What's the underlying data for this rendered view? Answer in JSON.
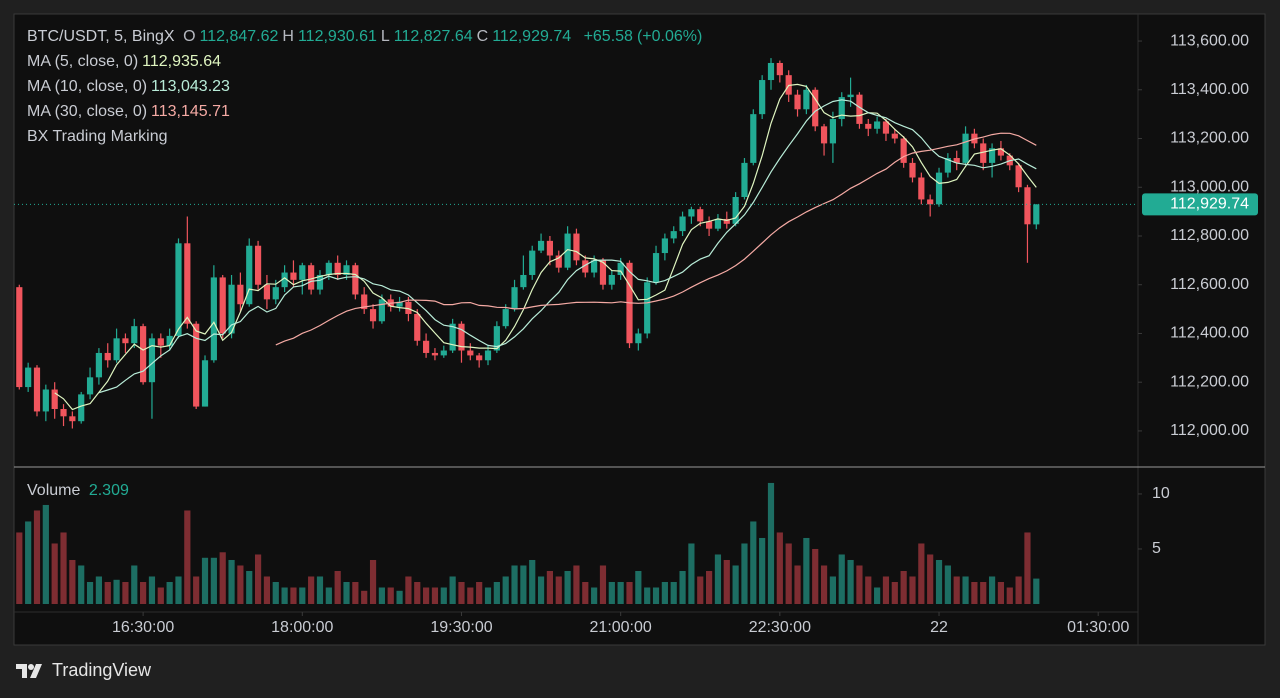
{
  "chart_data": [
    {
      "type": "candlestick",
      "title": "BTC/USDT, 5, BingX",
      "legend": {
        "labels": [
          "O",
          "H",
          "L",
          "C"
        ],
        "value_labels": [
          "112,847.62",
          "112,930.61",
          "112,827.64",
          "112,929.74"
        ],
        "change_label": "+65.58",
        "change_pct_label": "(+0.06%)"
      },
      "indicator": "BX Trading Marking",
      "last_price_label": "112,929.74",
      "up_color": "#22ab94",
      "down_color": "#f0555d",
      "open": [
        112590,
        112180,
        112260,
        112080,
        112170,
        112090,
        112060,
        112040,
        112150,
        112220,
        112320,
        112290,
        112380,
        112360,
        112430,
        112200,
        112380,
        112350,
        112390,
        112770,
        112440,
        112100,
        112290,
        112630,
        112400,
        112600,
        112520,
        112760,
        112600,
        112540,
        112590,
        112650,
        112620,
        112680,
        112580,
        112640,
        112690,
        112640,
        112680,
        112560,
        112500,
        112450,
        112540,
        112510,
        112530,
        112480,
        112370,
        112320,
        112310,
        112330,
        112440,
        112330,
        112310,
        112290,
        112330,
        112430,
        112500,
        112590,
        112640,
        112740,
        112780,
        112720,
        112670,
        112810,
        112700,
        112650,
        112700,
        112600,
        112640,
        112690,
        112360,
        112400,
        112610,
        112730,
        112790,
        112820,
        112880,
        112910,
        112860,
        112830,
        112870,
        112850,
        112960,
        113100,
        113300,
        113440,
        113510,
        113460,
        113380,
        113320,
        113400,
        113250,
        113180,
        113280,
        113370,
        113380,
        113260,
        113240,
        113270,
        113220,
        113200,
        113100,
        113040,
        112950,
        112930,
        113060,
        113120,
        113100,
        113220,
        113180,
        113100,
        113160,
        113130,
        113090,
        113000,
        112847.62
      ],
      "high": [
        112600,
        112280,
        112270,
        112190,
        112200,
        112110,
        112080,
        112160,
        112260,
        112340,
        112360,
        112420,
        112400,
        112460,
        112440,
        112400,
        112400,
        112420,
        112790,
        112880,
        112450,
        112310,
        112680,
        112640,
        112640,
        112650,
        112790,
        112780,
        112640,
        112620,
        112680,
        112700,
        112690,
        112690,
        112660,
        112700,
        112720,
        112700,
        112690,
        112590,
        112520,
        112560,
        112560,
        112550,
        112550,
        112500,
        112400,
        112340,
        112350,
        112460,
        112450,
        112360,
        112320,
        112350,
        112450,
        112520,
        112620,
        112720,
        112760,
        112810,
        112800,
        112740,
        112840,
        112830,
        112720,
        112720,
        112710,
        112660,
        112710,
        112700,
        112420,
        112630,
        112760,
        112810,
        112840,
        112900,
        112920,
        112920,
        112880,
        112890,
        112900,
        112980,
        113120,
        113320,
        113460,
        113530,
        113520,
        113480,
        113400,
        113420,
        113410,
        113260,
        113310,
        113390,
        113450,
        113390,
        113280,
        113290,
        113280,
        113240,
        113210,
        113120,
        113060,
        112970,
        113080,
        113140,
        113150,
        113250,
        113240,
        113200,
        113180,
        113190,
        113140,
        113100,
        113010,
        112930.61
      ],
      "low": [
        112170,
        112160,
        112060,
        112040,
        112050,
        112020,
        112010,
        112030,
        112130,
        112190,
        112260,
        112280,
        112320,
        112340,
        112190,
        112050,
        112300,
        112330,
        112380,
        112420,
        112090,
        112100,
        112280,
        112380,
        112380,
        112490,
        112510,
        112580,
        112500,
        112520,
        112570,
        112590,
        112560,
        112560,
        112560,
        112620,
        112620,
        112620,
        112540,
        112480,
        112420,
        112440,
        112490,
        112490,
        112450,
        112350,
        112300,
        112290,
        112300,
        112320,
        112280,
        112290,
        112260,
        112270,
        112320,
        112420,
        112490,
        112580,
        112620,
        112730,
        112680,
        112650,
        112660,
        112680,
        112630,
        112630,
        112580,
        112580,
        112620,
        112340,
        112330,
        112380,
        112600,
        112700,
        112770,
        112800,
        112850,
        112840,
        112800,
        112820,
        112830,
        112840,
        112950,
        113090,
        113280,
        113400,
        113430,
        113350,
        113290,
        113300,
        113230,
        113130,
        113100,
        113250,
        113330,
        113240,
        113210,
        113220,
        113190,
        113180,
        113080,
        113020,
        112930,
        112880,
        112920,
        113040,
        113070,
        113090,
        113160,
        113070,
        113040,
        113110,
        113070,
        112980,
        112690,
        112827.64
      ],
      "close": [
        112180,
        112260,
        112080,
        112170,
        112090,
        112060,
        112040,
        112150,
        112220,
        112320,
        112290,
        112380,
        112360,
        112430,
        112200,
        112380,
        112350,
        112390,
        112770,
        112440,
        112100,
        112290,
        112630,
        112400,
        112600,
        112520,
        112760,
        112600,
        112540,
        112590,
        112650,
        112620,
        112680,
        112580,
        112640,
        112690,
        112640,
        112680,
        112560,
        112500,
        112450,
        112540,
        112510,
        112530,
        112480,
        112370,
        112320,
        112310,
        112330,
        112440,
        112330,
        112310,
        112290,
        112330,
        112430,
        112500,
        112590,
        112640,
        112740,
        112780,
        112720,
        112670,
        112810,
        112700,
        112650,
        112700,
        112600,
        112640,
        112690,
        112360,
        112400,
        112610,
        112730,
        112790,
        112820,
        112880,
        112910,
        112860,
        112830,
        112870,
        112850,
        112960,
        113100,
        113300,
        113440,
        113510,
        113460,
        113380,
        113320,
        113400,
        113250,
        113180,
        113280,
        113370,
        113380,
        113260,
        113240,
        113270,
        113220,
        113200,
        113100,
        113040,
        112950,
        112930,
        113060,
        113120,
        113100,
        113220,
        113180,
        113100,
        113160,
        113130,
        113090,
        113000,
        112848,
        112929.74
      ],
      "ma": [
        {
          "name": "MA (5, close, 0)",
          "period": 5,
          "color": "#dff5c0",
          "value_label": "112,935.64"
        },
        {
          "name": "MA (10, close, 0)",
          "period": 10,
          "color": "#b8ecd8",
          "value_label": "113,043.23"
        },
        {
          "name": "MA (30, close, 0)",
          "period": 30,
          "color": "#f5aaa4",
          "value_label": "113,145.71"
        }
      ],
      "xlim": [
        -0.6,
        126.5
      ],
      "xticks": [
        {
          "value": 14,
          "label": "16:30:00"
        },
        {
          "value": 32,
          "label": "18:00:00"
        },
        {
          "value": 50,
          "label": "19:30:00"
        },
        {
          "value": 68,
          "label": "21:00:00"
        },
        {
          "value": 86,
          "label": "22:30:00"
        },
        {
          "value": 104,
          "label": "22"
        },
        {
          "value": 122,
          "label": "01:30:00"
        }
      ],
      "ylim": [
        111852,
        113711
      ],
      "yticks": [
        {
          "value": 112000,
          "label": "112,000.00"
        },
        {
          "value": 112200,
          "label": "112,200.00"
        },
        {
          "value": 112400,
          "label": "112,400.00"
        },
        {
          "value": 112600,
          "label": "112,600.00"
        },
        {
          "value": 112800,
          "label": "112,800.00"
        },
        {
          "value": 113000,
          "label": "113,000.00"
        },
        {
          "value": 113200,
          "label": "113,200.00"
        },
        {
          "value": 113400,
          "label": "113,400.00"
        },
        {
          "value": 113600,
          "label": "113,600.00"
        }
      ]
    },
    {
      "type": "bar",
      "title": "Volume",
      "up_color": "#1d6e63",
      "down_color": "#7e2d32",
      "values": [
        6.5,
        7.5,
        8.5,
        9,
        5.5,
        6.5,
        4,
        3.5,
        2,
        2.5,
        2,
        2.2,
        2,
        3.5,
        2,
        2.5,
        1.5,
        2,
        2.5,
        8.5,
        2.5,
        4.2,
        4.2,
        4.7,
        4,
        3.5,
        3,
        4.5,
        2.5,
        2,
        1.5,
        1.5,
        1.5,
        2.5,
        2.5,
        1.5,
        3,
        2,
        2,
        1.2,
        4,
        1.5,
        1.5,
        1.2,
        2.5,
        2,
        1.5,
        1.5,
        1.5,
        2.5,
        2,
        1.5,
        2,
        1.5,
        2,
        2.5,
        3.5,
        3.5,
        4,
        2.5,
        3,
        2.5,
        3,
        3.5,
        2,
        1.5,
        3.5,
        2,
        2,
        2,
        3,
        1.5,
        1.5,
        2,
        2,
        3,
        5.5,
        2.5,
        3,
        4.5,
        4,
        3.5,
        5.5,
        7.5,
        6,
        11,
        6.5,
        5.5,
        3.5,
        6,
        5,
        3.5,
        2.5,
        4.5,
        4,
        3.5,
        2.5,
        1.5,
        2.5,
        2,
        3,
        2.5,
        5.5,
        4.5,
        4,
        3.5,
        2.5,
        2.5,
        2,
        2,
        2.5,
        2,
        1.5,
        2.5,
        6.5,
        2.309
      ],
      "ylim": [
        0,
        11.45
      ],
      "yticks": [
        5,
        10
      ]
    }
  ],
  "footer": {
    "brand": "TradingView"
  }
}
